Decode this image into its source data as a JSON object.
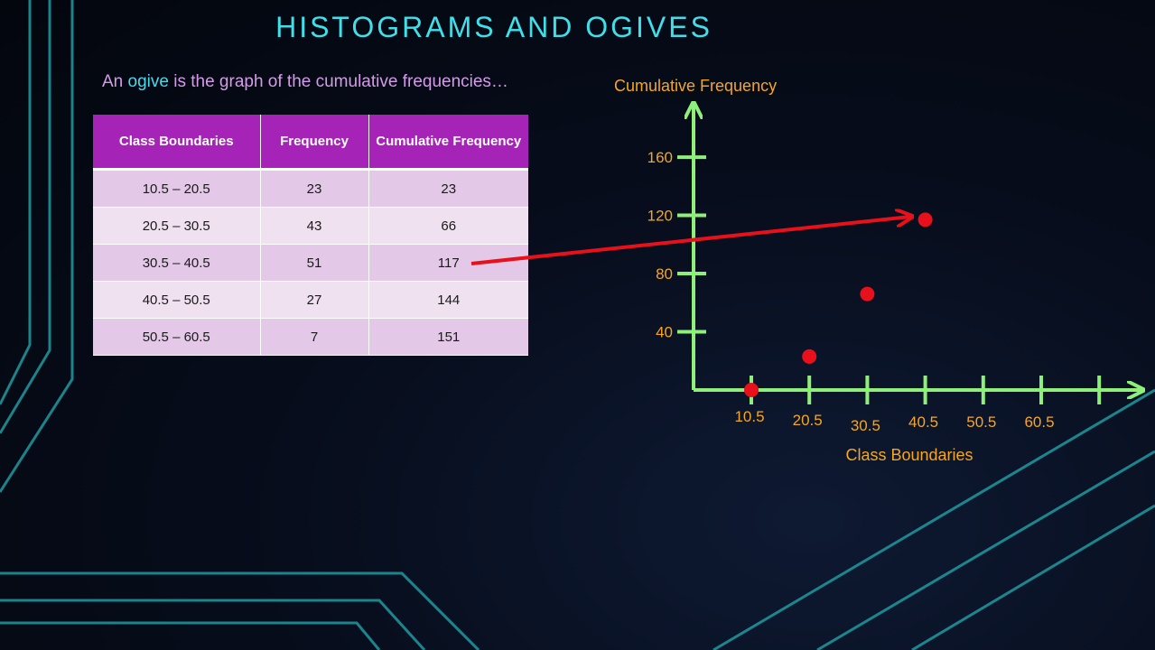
{
  "title": "HISTOGRAMS AND OGIVES",
  "subtitle": {
    "before": "An ",
    "emphasis": "ogive",
    "after": " is the graph of the cumulative frequencies…"
  },
  "table": {
    "headers": [
      "Class Boundaries",
      "Frequency",
      "Cumulative Frequency"
    ],
    "rows": [
      [
        "10.5 – 20.5",
        "23",
        "23"
      ],
      [
        "20.5 – 30.5",
        "43",
        "66"
      ],
      [
        "30.5 – 40.5",
        "51",
        "117"
      ],
      [
        "40.5 – 50.5",
        "27",
        "144"
      ],
      [
        "50.5 – 60.5",
        "7",
        "151"
      ]
    ]
  },
  "colors": {
    "title": "#3fe0ea",
    "subtitle": "#d59be9",
    "emphasis": "#4ed7e6",
    "header_bg": "#a623b8",
    "axis": "#8ef07a",
    "label": "#f5a623",
    "point": "#e8101a",
    "arrow": "#e8101a"
  },
  "chart_data": {
    "type": "scatter",
    "ylabel": "Cumulative Frequency",
    "xlabel": "Class Boundaries",
    "x_ticks": [
      "10.5",
      "20.5",
      "30.5",
      "40.5",
      "50.5",
      "60.5"
    ],
    "y_ticks": [
      "40",
      "80",
      "120",
      "160"
    ],
    "x": [
      10.5,
      20.5,
      30.5,
      40.5
    ],
    "y": [
      0,
      23,
      66,
      117
    ],
    "annotation": "arrow from the cumulative frequency 117 in the table to the plotted point"
  }
}
